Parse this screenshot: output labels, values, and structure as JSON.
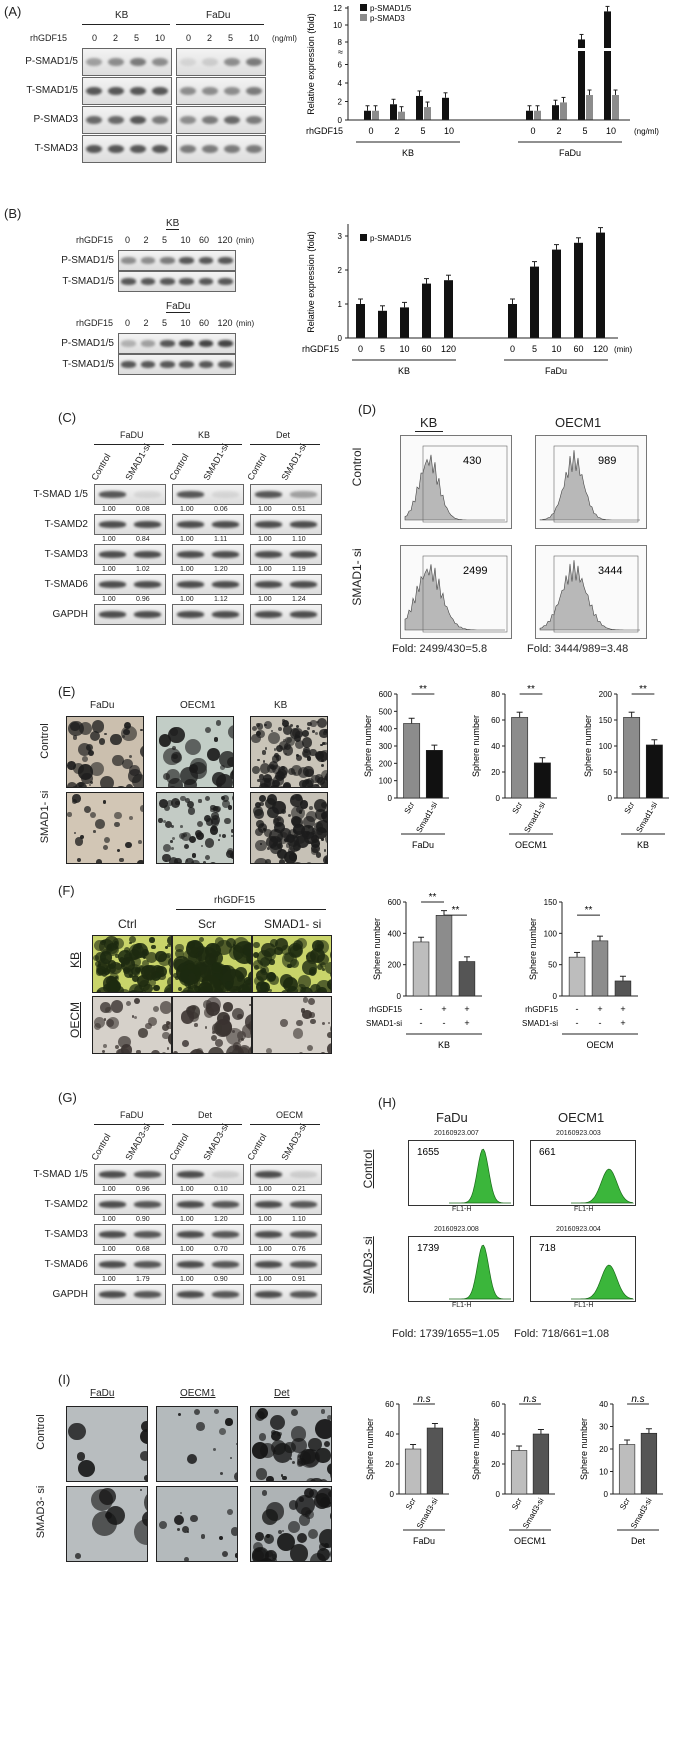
{
  "colors": {
    "black": "#111111",
    "grey": "#8c8c8c",
    "light_grey": "#bdbdbd",
    "dark_grey": "#555555",
    "green": "#3bb63b",
    "yellow_bg": "#c9d46a",
    "microscope_bg": "#c8cdc4"
  },
  "panelA": {
    "label": "(A)",
    "cell1": "KB",
    "cell2": "FaDu",
    "treatment": "rhGDF15",
    "doses": [
      "0",
      "2",
      "5",
      "10"
    ],
    "unit": "(ng/ml)",
    "rows": [
      "P-SMAD1/5",
      "T-SMAD1/5",
      "P-SMAD3",
      "T-SMAD3"
    ],
    "chart": {
      "ylabel": "Relative expression (fold)",
      "legend": [
        "p-SMAD1/5",
        "p-SMAD3"
      ],
      "xprefix": "rhGDF15",
      "xunit": "(ng/ml)",
      "yticks": [
        "0",
        "2",
        "4",
        "6",
        "8",
        "10",
        "12"
      ],
      "break_label": "≈"
    }
  },
  "panelB": {
    "label": "(B)",
    "cell1": "KB",
    "cell2": "FaDu",
    "treatment": "rhGDF15",
    "times": [
      "0",
      "2",
      "5",
      "10",
      "60",
      "120"
    ],
    "unit": "(min)",
    "rows": [
      "P-SMAD1/5",
      "T-SMAD1/5"
    ],
    "chart": {
      "ylabel": "Relative expression (fold)",
      "legend": [
        "p-SMAD1/5"
      ],
      "xprefix": "rhGDF15",
      "xunit": "(min)",
      "yticks": [
        "0",
        "1",
        "2",
        "3"
      ]
    }
  },
  "panelC": {
    "label": "(C)",
    "cells": [
      "FaDU",
      "KB",
      "Det"
    ],
    "lanes": [
      "Control",
      "SMAD1-si"
    ],
    "rows": [
      {
        "name": "T-SMAD 1/5",
        "values": [
          "1.00",
          "0.08",
          "1.00",
          "0.06",
          "1.00",
          "0.51"
        ]
      },
      {
        "name": "T-SAMD2",
        "values": [
          "1.00",
          "0.84",
          "1.00",
          "1.11",
          "1.00",
          "1.10"
        ]
      },
      {
        "name": "T-SAMD3",
        "values": [
          "1.00",
          "1.02",
          "1.00",
          "1.20",
          "1.00",
          "1.19"
        ]
      },
      {
        "name": "T-SMAD6",
        "values": [
          "1.00",
          "0.96",
          "1.00",
          "1.12",
          "1.00",
          "1.24"
        ]
      },
      {
        "name": "GAPDH",
        "values": []
      }
    ]
  },
  "panelD": {
    "label": "(D)",
    "cells": [
      "KB",
      "OECM1"
    ],
    "rows": [
      "Control",
      "SMAD1- si"
    ],
    "counts": [
      "430",
      "989",
      "2499",
      "3444"
    ],
    "folds": [
      "Fold: 2499/430=5.8",
      "Fold: 3444/989=3.48"
    ]
  },
  "panelE": {
    "label": "(E)",
    "cells": [
      "FaDu",
      "OECM1",
      "KB"
    ],
    "rows": [
      "Control",
      "SMAD1- si"
    ],
    "ylabel": "Sphere number",
    "sig": "**"
  },
  "panelF": {
    "label": "(F)",
    "group": "rhGDF15",
    "cols": [
      "Ctrl",
      "Scr",
      "SMAD1- si"
    ],
    "rows": [
      "KB",
      "OECM"
    ],
    "ylabel": "Sphere number",
    "sig": "**",
    "row_labels": [
      "rhGDF15",
      "SMAD1-si"
    ],
    "signs": {
      "rhgdf15": [
        "-",
        "+",
        "+"
      ],
      "smad1si": [
        "-",
        "-",
        "+"
      ]
    },
    "charts": [
      "KB",
      "OECM"
    ]
  },
  "panelG": {
    "label": "(G)",
    "cells": [
      "FaDU",
      "Det",
      "OECM"
    ],
    "lanes": [
      "Control",
      "SMAD3-si"
    ],
    "rows": [
      {
        "name": "T-SMAD 1/5",
        "values": [
          "1.00",
          "0.96",
          "1.00",
          "0.10",
          "1.00",
          "0.21"
        ]
      },
      {
        "name": "T-SAMD2",
        "values": [
          "1.00",
          "0.90",
          "1.00",
          "1.20",
          "1.00",
          "1.10"
        ]
      },
      {
        "name": "T-SAMD3",
        "values": [
          "1.00",
          "0.68",
          "1.00",
          "0.70",
          "1.00",
          "0.76"
        ]
      },
      {
        "name": "T-SMAD6",
        "values": [
          "1.00",
          "1.79",
          "1.00",
          "0.90",
          "1.00",
          "0.91"
        ]
      },
      {
        "name": "GAPDH",
        "values": []
      }
    ]
  },
  "panelH": {
    "label": "(H)",
    "cells": [
      "FaDu",
      "OECM1"
    ],
    "rows": [
      "Control",
      "SMAD3- si"
    ],
    "ids": [
      "20160923.007",
      "20160923.003",
      "20160923.008",
      "20160923.004"
    ],
    "counts": [
      "1655",
      "661",
      "1739",
      "718"
    ],
    "xaxis": "FL1-H",
    "folds": [
      "Fold: 1739/1655=1.05",
      "Fold: 718/661=1.08"
    ]
  },
  "panelI": {
    "label": "(I)",
    "cells": [
      "FaDu",
      "OECM1",
      "Det"
    ],
    "rows": [
      "Control",
      "SMAD3- si"
    ],
    "ylabel": "Sphere number",
    "ns": "n.s"
  },
  "chart_data": [
    {
      "type": "bar",
      "title": "",
      "ylabel": "Relative expression (fold)",
      "xlabel": "rhGDF15 (ng/ml)",
      "groups": [
        "KB",
        "FaDu"
      ],
      "categories": [
        "0",
        "2",
        "5",
        "10",
        "0",
        "2",
        "5",
        "10"
      ],
      "series": [
        {
          "name": "p-SMAD1/5",
          "values": [
            1.0,
            1.7,
            2.6,
            2.4,
            1.0,
            1.6,
            8.3,
            11.6
          ]
        },
        {
          "name": "p-SMAD3",
          "values": [
            1.0,
            0.9,
            1.4,
            null,
            1.0,
            1.9,
            2.7,
            2.7
          ]
        }
      ],
      "ylim": [
        0,
        12
      ]
    },
    {
      "type": "bar",
      "title": "",
      "ylabel": "Relative expression (fold)",
      "xlabel": "rhGDF15 (min)",
      "groups": [
        "KB",
        "FaDu"
      ],
      "categories": [
        "0",
        "5",
        "10",
        "60",
        "120",
        "0",
        "5",
        "10",
        "60",
        "120"
      ],
      "series": [
        {
          "name": "p-SMAD1/5",
          "values": [
            1.0,
            0.8,
            0.9,
            1.6,
            1.7,
            1.0,
            2.1,
            2.6,
            2.8,
            3.1
          ]
        }
      ],
      "ylim": [
        0,
        3.5
      ]
    },
    {
      "type": "bar",
      "title": "FaDu",
      "ylabel": "Sphere number",
      "categories": [
        "Scr",
        "Smad1-si"
      ],
      "values": [
        430,
        275
      ],
      "ylim": [
        0,
        600
      ],
      "yticks": [
        "0",
        "100",
        "200",
        "300",
        "400",
        "500",
        "600"
      ]
    },
    {
      "type": "bar",
      "title": "OECM1",
      "ylabel": "Sphere number",
      "categories": [
        "Scr",
        "Smad1-si"
      ],
      "values": [
        62,
        27
      ],
      "ylim": [
        0,
        80
      ],
      "yticks": [
        "0",
        "20",
        "40",
        "60",
        "80"
      ]
    },
    {
      "type": "bar",
      "title": "KB",
      "ylabel": "Sphere number",
      "categories": [
        "Scr",
        "Smad1-si"
      ],
      "values": [
        155,
        102
      ],
      "ylim": [
        0,
        200
      ],
      "yticks": [
        "0",
        "50",
        "100",
        "150",
        "200"
      ]
    },
    {
      "type": "bar",
      "title": "KB",
      "ylabel": "Sphere number",
      "categories": [
        "-/-",
        "+/-",
        "+/+"
      ],
      "values": [
        345,
        515,
        220
      ],
      "ylim": [
        0,
        600
      ],
      "yticks": [
        "0",
        "200",
        "400",
        "600"
      ]
    },
    {
      "type": "bar",
      "title": "OECM",
      "ylabel": "Sphere number",
      "categories": [
        "-/-",
        "+/-",
        "+/+"
      ],
      "values": [
        62,
        88,
        24
      ],
      "ylim": [
        0,
        150
      ],
      "yticks": [
        "0",
        "50",
        "100",
        "150"
      ]
    },
    {
      "type": "bar",
      "title": "FaDu",
      "ylabel": "Sphere number",
      "categories": [
        "Scr",
        "Smad3-si"
      ],
      "values": [
        30,
        44
      ],
      "ylim": [
        0,
        60
      ],
      "yticks": [
        "0",
        "20",
        "40",
        "60"
      ]
    },
    {
      "type": "bar",
      "title": "OECM1",
      "ylabel": "Sphere number",
      "categories": [
        "Scr",
        "Smad3-si"
      ],
      "values": [
        29,
        40
      ],
      "ylim": [
        0,
        60
      ],
      "yticks": [
        "0",
        "20",
        "40",
        "60"
      ]
    },
    {
      "type": "bar",
      "title": "Det",
      "ylabel": "Sphere number",
      "categories": [
        "Scr",
        "Smad3-si"
      ],
      "values": [
        22,
        27
      ],
      "ylim": [
        0,
        40
      ],
      "yticks": [
        "0",
        "10",
        "20",
        "30",
        "40"
      ]
    }
  ]
}
